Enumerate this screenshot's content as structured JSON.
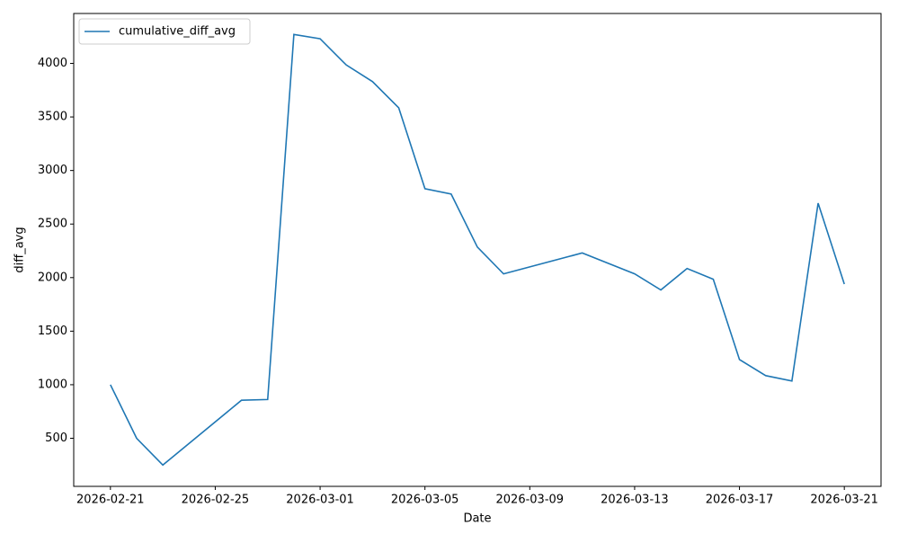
{
  "chart_data": {
    "type": "line",
    "x": [
      "2026-02-21",
      "2026-02-22",
      "2026-02-23",
      "2026-02-26",
      "2026-02-27",
      "2026-02-28",
      "2026-03-01",
      "2026-03-02",
      "2026-03-03",
      "2026-03-04",
      "2026-03-05",
      "2026-03-06",
      "2026-03-07",
      "2026-03-08",
      "2026-03-11",
      "2026-03-13",
      "2026-03-14",
      "2026-03-15",
      "2026-03-16",
      "2026-03-17",
      "2026-03-18",
      "2026-03-19",
      "2026-03-20",
      "2026-03-21"
    ],
    "series": [
      {
        "name": "cumulative_diff_avg",
        "color": "#1f77b4",
        "values": [
          1000,
          500,
          250,
          855,
          862,
          4270,
          4230,
          3985,
          3830,
          3585,
          2830,
          2780,
          2285,
          2035,
          2230,
          2035,
          1885,
          2085,
          1985,
          1235,
          1085,
          1035,
          2695,
          1940
        ]
      }
    ],
    "xlabel": "Date",
    "ylabel": "diff_avg",
    "ylim": [
      51,
      4466
    ],
    "yticks": [
      500,
      1000,
      1500,
      2000,
      2500,
      3000,
      3500,
      4000
    ],
    "xticks": [
      "2026-02-21",
      "2026-02-25",
      "2026-03-01",
      "2026-03-05",
      "2026-03-09",
      "2026-03-13",
      "2026-03-17",
      "2026-03-21"
    ],
    "legend": "upper left"
  }
}
